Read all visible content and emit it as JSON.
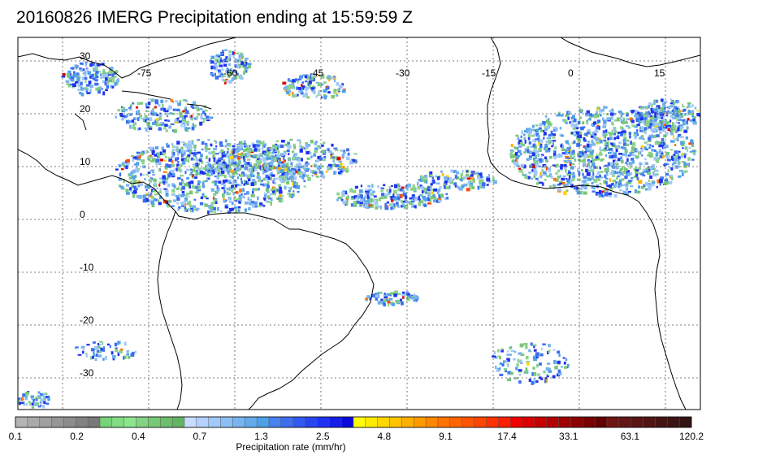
{
  "title": "20160826 IMERG Precipitation ending at 15:59:59 Z",
  "map": {
    "lon_labels": [
      "-75",
      "-60",
      "-45",
      "-30",
      "-15",
      "0",
      "15"
    ],
    "lat_labels": [
      "30",
      "20",
      "10",
      "0",
      "-10",
      "-20",
      "-30"
    ],
    "gridline_style": "dotted",
    "coastline_color": "#000000"
  },
  "colorbar": {
    "label": "Precipitation rate (mm/hr)",
    "tick_labels": [
      "0.1",
      "0.2",
      "0.4",
      "0.7",
      "1.3",
      "2.5",
      "4.8",
      "9.1",
      "17.4",
      "33.1",
      "63.1",
      "120.2"
    ],
    "colors": [
      "#b4b4b4",
      "#aaaaaa",
      "#a0a0a0",
      "#969696",
      "#8c8c8c",
      "#828282",
      "#787878",
      "#78d278",
      "#82dc82",
      "#8ce68c",
      "#82d282",
      "#78c878",
      "#6ebe6e",
      "#64b464",
      "#c8dcff",
      "#b4d2ff",
      "#a0c8fa",
      "#8cbef5",
      "#78b4f0",
      "#64aaeb",
      "#50a0e6",
      "#4682f0",
      "#3c6ef0",
      "#325af0",
      "#2846f0",
      "#1e32f0",
      "#141ee6",
      "#0a0adc",
      "#ffff00",
      "#ffeb00",
      "#ffd700",
      "#ffc300",
      "#ffaf00",
      "#ff9b00",
      "#ff8700",
      "#ff7300",
      "#ff6400",
      "#ff5500",
      "#ff4600",
      "#ff3200",
      "#ff1e00",
      "#f00000",
      "#dc0000",
      "#c80000",
      "#b40000",
      "#a00000",
      "#8c0000",
      "#780000",
      "#640000",
      "#6e1414",
      "#641414",
      "#5a1414",
      "#501414",
      "#461414",
      "#3c1414",
      "#321414"
    ]
  }
}
